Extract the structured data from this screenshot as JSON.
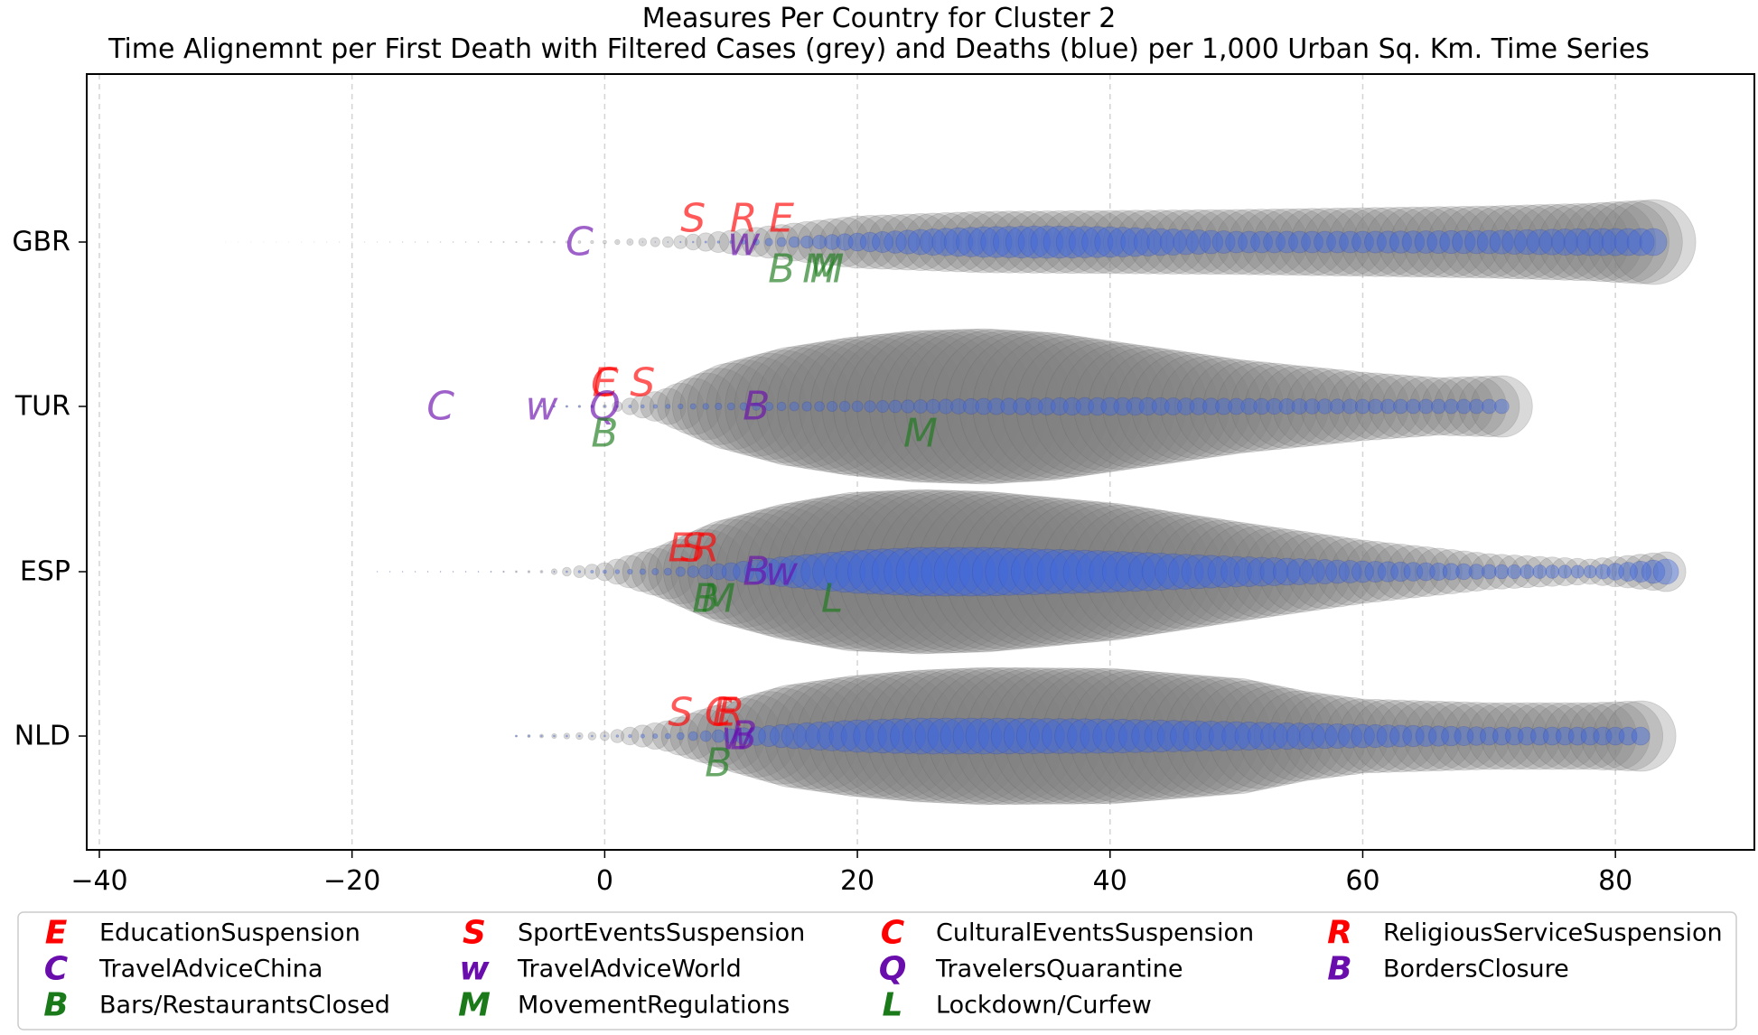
{
  "chart_data": {
    "type": "scatter",
    "title": "Measures Per Country for Cluster 2",
    "subtitle": "Time Alignemnt per First Death with Filtered Cases (grey) and Deaths (blue) per 1,000 Urban Sq. Km. Time Series",
    "xlabel": "",
    "ylabel": "",
    "xlim": [
      -41,
      91
    ],
    "x_ticks": [
      -40,
      -20,
      0,
      20,
      40,
      60,
      80
    ],
    "x_tick_labels": [
      "−40",
      "−20",
      "0",
      "20",
      "40",
      "60",
      "80"
    ],
    "grid": "vertical dashed",
    "legend_position": "bottom",
    "colors": {
      "cases": "#808080",
      "deaths": "#4169e1",
      "red": "#ff0000",
      "purple": "#6a0dad",
      "green": "#1a7a1a"
    },
    "countries": [
      {
        "name": "GBR",
        "start": -30,
        "end": 83,
        "cases_profile": [
          [
            -30,
            0.1
          ],
          [
            -20,
            0.2
          ],
          [
            -10,
            0.5
          ],
          [
            -4,
            1.0
          ],
          [
            0,
            2.0
          ],
          [
            5,
            6.0
          ],
          [
            10,
            13
          ],
          [
            15,
            21
          ],
          [
            20,
            29
          ],
          [
            30,
            34
          ],
          [
            40,
            35
          ],
          [
            50,
            36
          ],
          [
            60,
            38
          ],
          [
            70,
            40
          ],
          [
            78,
            43
          ],
          [
            83,
            47
          ]
        ],
        "deaths_profile": [
          [
            0,
            0
          ],
          [
            5,
            0.5
          ],
          [
            10,
            1.5
          ],
          [
            15,
            6
          ],
          [
            20,
            10
          ],
          [
            25,
            14
          ],
          [
            30,
            17
          ],
          [
            35,
            18
          ],
          [
            40,
            17
          ],
          [
            50,
            12
          ],
          [
            60,
            12
          ],
          [
            70,
            13
          ],
          [
            78,
            15
          ],
          [
            83,
            15
          ]
        ],
        "measures": [
          {
            "code": "C",
            "x": -2,
            "pos": "center",
            "group": "purple"
          },
          {
            "code": "S",
            "x": 7,
            "pos": "above",
            "group": "red"
          },
          {
            "code": "R",
            "x": 11,
            "pos": "above",
            "group": "red"
          },
          {
            "code": "E",
            "x": 14,
            "pos": "above",
            "group": "red"
          },
          {
            "code": "w",
            "x": 11,
            "pos": "center",
            "group": "purple"
          },
          {
            "code": "B",
            "x": 14,
            "pos": "below",
            "group": "green"
          },
          {
            "code": "M",
            "x": 17,
            "pos": "below",
            "group": "green"
          },
          {
            "code": "M",
            "x": 17.6,
            "pos": "below",
            "group": "green"
          }
        ]
      },
      {
        "name": "TUR",
        "start": -5,
        "end": 71,
        "cases_profile": [
          [
            -5,
            0.5
          ],
          [
            0,
            2
          ],
          [
            5,
            20
          ],
          [
            10,
            48
          ],
          [
            15,
            66
          ],
          [
            20,
            77
          ],
          [
            25,
            84
          ],
          [
            30,
            86
          ],
          [
            35,
            82
          ],
          [
            40,
            72
          ],
          [
            50,
            52
          ],
          [
            60,
            38
          ],
          [
            66,
            32
          ],
          [
            71,
            34
          ]
        ],
        "deaths_profile": [
          [
            0,
            1
          ],
          [
            10,
            4
          ],
          [
            20,
            6
          ],
          [
            30,
            9
          ],
          [
            40,
            10
          ],
          [
            50,
            9
          ],
          [
            60,
            8
          ],
          [
            71,
            8
          ]
        ],
        "measures": [
          {
            "code": "C",
            "x": -13,
            "pos": "center",
            "group": "purple"
          },
          {
            "code": "w",
            "x": -5,
            "pos": "center",
            "group": "purple"
          },
          {
            "code": "E",
            "x": 0,
            "pos": "above",
            "group": "red"
          },
          {
            "code": "C",
            "x": 0,
            "pos": "above",
            "group": "red"
          },
          {
            "code": "S",
            "x": 3,
            "pos": "above",
            "group": "red"
          },
          {
            "code": "Q",
            "x": 0,
            "pos": "center",
            "group": "purple"
          },
          {
            "code": "B",
            "x": 12,
            "pos": "center",
            "group": "purple"
          },
          {
            "code": "B",
            "x": 0,
            "pos": "below",
            "group": "green"
          },
          {
            "code": "M",
            "x": 25,
            "pos": "below",
            "group": "green"
          }
        ]
      },
      {
        "name": "ESP",
        "start": -18,
        "end": 84,
        "cases_profile": [
          [
            -18,
            0.2
          ],
          [
            -10,
            0.4
          ],
          [
            -5,
            1.5
          ],
          [
            0,
            10
          ],
          [
            5,
            30
          ],
          [
            10,
            58
          ],
          [
            15,
            76
          ],
          [
            20,
            88
          ],
          [
            25,
            91
          ],
          [
            30,
            89
          ],
          [
            40,
            76
          ],
          [
            50,
            55
          ],
          [
            60,
            35
          ],
          [
            70,
            20
          ],
          [
            78,
            14
          ],
          [
            84,
            22
          ]
        ],
        "deaths_profile": [
          [
            -5,
            0.3
          ],
          [
            0,
            2
          ],
          [
            5,
            4
          ],
          [
            10,
            10
          ],
          [
            15,
            18
          ],
          [
            20,
            24
          ],
          [
            25,
            27
          ],
          [
            30,
            27
          ],
          [
            40,
            23
          ],
          [
            50,
            17
          ],
          [
            60,
            12
          ],
          [
            70,
            8
          ],
          [
            78,
            7
          ],
          [
            84,
            14
          ]
        ],
        "measures": [
          {
            "code": "E",
            "x": 6,
            "pos": "above",
            "group": "red"
          },
          {
            "code": "S",
            "x": 7,
            "pos": "above",
            "group": "red"
          },
          {
            "code": "R",
            "x": 8,
            "pos": "above",
            "group": "red"
          },
          {
            "code": "B",
            "x": 12,
            "pos": "center",
            "group": "purple"
          },
          {
            "code": "w",
            "x": 14,
            "pos": "center",
            "group": "purple"
          },
          {
            "code": "B",
            "x": 8,
            "pos": "below",
            "group": "green"
          },
          {
            "code": "M",
            "x": 9,
            "pos": "below",
            "group": "green"
          },
          {
            "code": "L",
            "x": 18,
            "pos": "below",
            "group": "green"
          }
        ]
      },
      {
        "name": "NLD",
        "start": -7,
        "end": 82,
        "cases_profile": [
          [
            -7,
            1
          ],
          [
            0,
            5
          ],
          [
            5,
            17
          ],
          [
            10,
            38
          ],
          [
            15,
            57
          ],
          [
            20,
            67
          ],
          [
            25,
            73
          ],
          [
            30,
            76
          ],
          [
            40,
            75
          ],
          [
            50,
            64
          ],
          [
            55,
            50
          ],
          [
            60,
            41
          ],
          [
            70,
            37
          ],
          [
            78,
            37
          ],
          [
            82,
            39
          ]
        ],
        "deaths_profile": [
          [
            0,
            1
          ],
          [
            5,
            3
          ],
          [
            10,
            8
          ],
          [
            15,
            14
          ],
          [
            20,
            18
          ],
          [
            25,
            20
          ],
          [
            30,
            20
          ],
          [
            40,
            19
          ],
          [
            50,
            16
          ],
          [
            60,
            13
          ],
          [
            70,
            10
          ],
          [
            82,
            10
          ]
        ],
        "measures": [
          {
            "code": "S",
            "x": 6,
            "pos": "above",
            "group": "red"
          },
          {
            "code": "C",
            "x": 9,
            "pos": "above",
            "group": "red"
          },
          {
            "code": "E",
            "x": 9.5,
            "pos": "above",
            "group": "red"
          },
          {
            "code": "R",
            "x": 10,
            "pos": "above",
            "group": "red"
          },
          {
            "code": "w",
            "x": 10.5,
            "pos": "center",
            "group": "purple"
          },
          {
            "code": "B",
            "x": 11,
            "pos": "center",
            "group": "purple"
          },
          {
            "code": "B",
            "x": 9,
            "pos": "below",
            "group": "green"
          }
        ]
      }
    ],
    "legend": [
      {
        "symbol": "E",
        "label": "EducationSuspension",
        "group": "red"
      },
      {
        "symbol": "S",
        "label": "SportEventsSuspension",
        "group": "red"
      },
      {
        "symbol": "C",
        "label": "CulturalEventsSuspension",
        "group": "red"
      },
      {
        "symbol": "R",
        "label": "ReligiousServiceSuspension",
        "group": "red"
      },
      {
        "symbol": "C",
        "label": "TravelAdviceChina",
        "group": "purple"
      },
      {
        "symbol": "w",
        "label": "TravelAdviceWorld",
        "group": "purple"
      },
      {
        "symbol": "Q",
        "label": "TravelersQuarantine",
        "group": "purple"
      },
      {
        "symbol": "B",
        "label": "BordersClosure",
        "group": "purple"
      },
      {
        "symbol": "B",
        "label": "Bars/RestaurantsClosed",
        "group": "green"
      },
      {
        "symbol": "M",
        "label": "MovementRegulations",
        "group": "green"
      },
      {
        "symbol": "L",
        "label": "Lockdown/Curfew",
        "group": "green"
      }
    ]
  }
}
